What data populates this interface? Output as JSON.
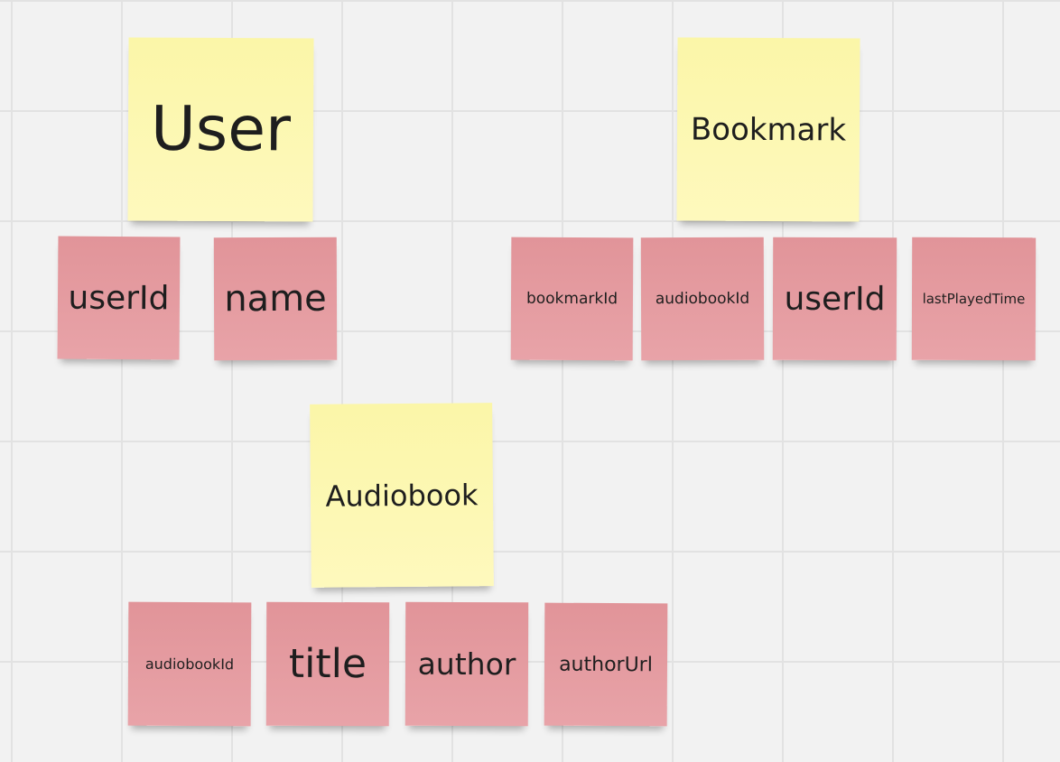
{
  "board": {
    "entities": [
      {
        "id": "user",
        "label": "User",
        "fields": [
          "userId",
          "name"
        ]
      },
      {
        "id": "bookmark",
        "label": "Bookmark",
        "fields": [
          "bookmarkId",
          "audiobookId",
          "userId",
          "lastPlayedTime"
        ]
      },
      {
        "id": "audiobook",
        "label": "Audiobook",
        "fields": [
          "audiobookId",
          "title",
          "author",
          "authorUrl"
        ]
      }
    ]
  },
  "colors": {
    "entity_note": "#fdf8b5",
    "field_note": "#e49ca1",
    "canvas": "#f2f2f2",
    "grid_line": "#e2e2e2"
  }
}
